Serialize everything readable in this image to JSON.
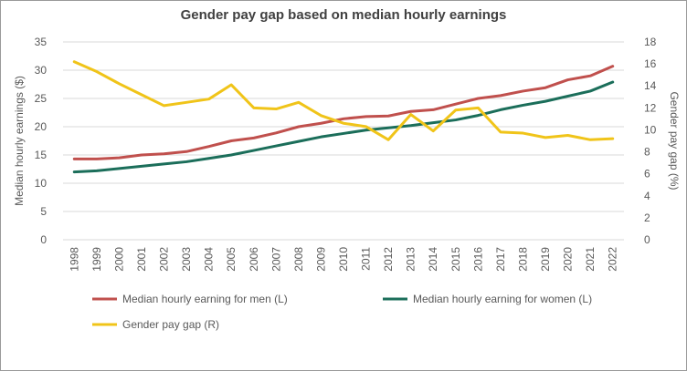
{
  "chart_data": {
    "type": "line",
    "title": "Gender pay gap based on median hourly earnings",
    "ylabel_left": "Median hourly earnings ($)",
    "ylabel_right": "Gender pay gap (%)",
    "ylim_left": [
      0,
      35
    ],
    "yticks_left": [
      "0",
      "5",
      "10",
      "15",
      "20",
      "25",
      "30",
      "35"
    ],
    "ylim_right": [
      0,
      18
    ],
    "yticks_right": [
      "0",
      "2",
      "4",
      "6",
      "8",
      "10",
      "12",
      "14",
      "16",
      "18"
    ],
    "grid": true,
    "legend_position": "bottom",
    "categories": [
      "1998",
      "1999",
      "2000",
      "2001",
      "2002",
      "2003",
      "2004",
      "2005",
      "2006",
      "2007",
      "2008",
      "2009",
      "2010",
      "2011",
      "2012",
      "2013",
      "2014",
      "2015",
      "2016",
      "2017",
      "2018",
      "2019",
      "2020",
      "2021",
      "2022"
    ],
    "series": [
      {
        "name": "Median hourly earning for men (L)",
        "axis": "left",
        "color": "#c0504d",
        "values": [
          14.3,
          14.3,
          14.5,
          15.0,
          15.2,
          15.6,
          16.5,
          17.5,
          18.0,
          18.9,
          20.0,
          20.6,
          21.4,
          21.8,
          21.9,
          22.7,
          23.0,
          24.0,
          25.0,
          25.5,
          26.3,
          26.9,
          28.3,
          29.0,
          30.7
        ]
      },
      {
        "name": "Median hourly earning for women (L)",
        "axis": "left",
        "color": "#1b6e5a",
        "values": [
          12.0,
          12.2,
          12.6,
          13.0,
          13.4,
          13.8,
          14.4,
          15.0,
          15.8,
          16.6,
          17.4,
          18.2,
          18.8,
          19.4,
          19.8,
          20.2,
          20.7,
          21.2,
          22.0,
          23.0,
          23.8,
          24.5,
          25.4,
          26.3,
          27.9
        ]
      },
      {
        "name": "Gender pay gap (R)",
        "axis": "right",
        "color": "#f0c419",
        "values": [
          16.2,
          15.3,
          14.2,
          13.2,
          12.2,
          12.5,
          12.8,
          14.1,
          12.0,
          11.9,
          12.5,
          11.3,
          10.6,
          10.3,
          9.1,
          11.4,
          9.9,
          11.8,
          12.0,
          9.8,
          9.7,
          9.3,
          9.5,
          9.1,
          9.2
        ]
      }
    ]
  }
}
